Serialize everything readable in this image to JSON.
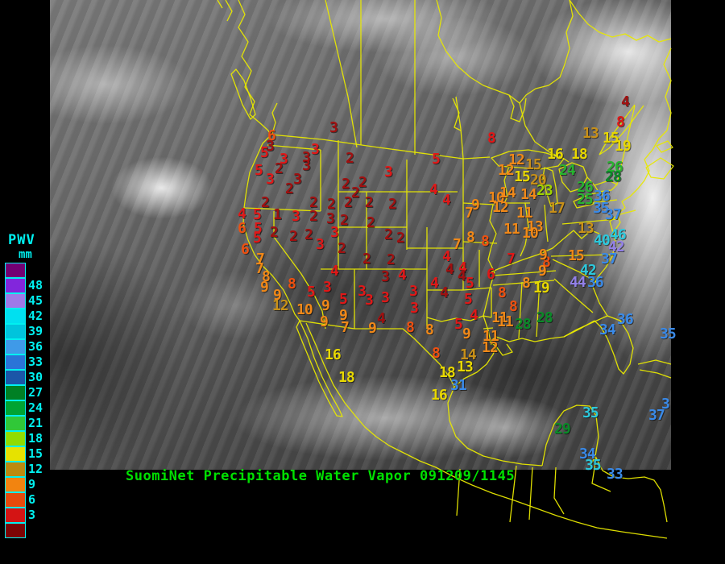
{
  "title": {
    "text": "SuomiNet Precipitable Water Vapor 091209/1145",
    "color": "#00e000"
  },
  "map": {
    "line_color": "#e8e800",
    "background": "#000000"
  },
  "legend": {
    "label": "PWV",
    "units": "mm",
    "text_color": "#00f0f0",
    "entries": [
      {
        "value": "",
        "color": "#730073"
      },
      {
        "value": "48",
        "color": "#8226dc"
      },
      {
        "value": "45",
        "color": "#9f79e8"
      },
      {
        "value": "42",
        "color": "#00e0f0"
      },
      {
        "value": "39",
        "color": "#00c4dc"
      },
      {
        "value": "36",
        "color": "#3f9ae8"
      },
      {
        "value": "33",
        "color": "#2a74d8"
      },
      {
        "value": "30",
        "color": "#1b56a8"
      },
      {
        "value": "27",
        "color": "#008024"
      },
      {
        "value": "24",
        "color": "#00a432"
      },
      {
        "value": "21",
        "color": "#30c838"
      },
      {
        "value": "18",
        "color": "#90dc00"
      },
      {
        "value": "15",
        "color": "#e6e200"
      },
      {
        "value": "12",
        "color": "#bc8a10"
      },
      {
        "value": "9",
        "color": "#f28410"
      },
      {
        "value": "6",
        "color": "#e64a0c"
      },
      {
        "value": "3",
        "color": "#d41414"
      },
      {
        "value": "",
        "color": "#7c0404"
      }
    ]
  },
  "palette": {
    "dr": "#a01010",
    "r": "#e01818",
    "or": "#ee5010",
    "o": "#f08818",
    "gd": "#c89018",
    "y": "#e8d800",
    "yg": "#a0d400",
    "gr": "#28b430",
    "dg": "#0a8a28",
    "bl": "#3a8ae8",
    "cy": "#2cc8dc",
    "pu": "#9280e8"
  },
  "stations": {
    "units": "mm PWV",
    "items": [
      [
        "3",
        409,
        151,
        "dr"
      ],
      [
        "6",
        332,
        161,
        "or"
      ],
      [
        "3",
        330,
        174,
        "dr"
      ],
      [
        "5",
        323,
        182,
        "r"
      ],
      [
        "3",
        386,
        178,
        "r"
      ],
      [
        "3",
        347,
        190,
        "r"
      ],
      [
        "3",
        375,
        188,
        "dr"
      ],
      [
        "3",
        375,
        198,
        "dr"
      ],
      [
        "2",
        429,
        189,
        "dr"
      ],
      [
        "5",
        536,
        190,
        "r"
      ],
      [
        "2",
        341,
        202,
        "dr"
      ],
      [
        "5",
        316,
        204,
        "r"
      ],
      [
        "3",
        477,
        206,
        "r"
      ],
      [
        "3",
        330,
        215,
        "r"
      ],
      [
        "3",
        364,
        215,
        "dr"
      ],
      [
        "2",
        354,
        227,
        "dr"
      ],
      [
        "2",
        424,
        221,
        "dr"
      ],
      [
        "2",
        445,
        219,
        "dr"
      ],
      [
        "2",
        436,
        232,
        "dr"
      ],
      [
        "4",
        533,
        228,
        "r"
      ],
      [
        "4",
        549,
        241,
        "r"
      ],
      [
        "2",
        324,
        244,
        "dr"
      ],
      [
        "2",
        384,
        244,
        "dr"
      ],
      [
        "2",
        406,
        246,
        "dr"
      ],
      [
        "2",
        427,
        244,
        "dr"
      ],
      [
        "2",
        453,
        244,
        "dr"
      ],
      [
        "2",
        482,
        246,
        "dr"
      ],
      [
        "9",
        585,
        247,
        "o"
      ],
      [
        "7",
        577,
        257,
        "o"
      ],
      [
        "4",
        295,
        258,
        "r"
      ],
      [
        "5",
        314,
        259,
        "r"
      ],
      [
        "1",
        339,
        259,
        "dr"
      ],
      [
        "3",
        362,
        261,
        "r"
      ],
      [
        "2",
        384,
        261,
        "dr"
      ],
      [
        "3",
        405,
        264,
        "dr"
      ],
      [
        "2",
        422,
        266,
        "dr"
      ],
      [
        "2",
        455,
        269,
        "dr"
      ],
      [
        "6",
        295,
        276,
        "or"
      ],
      [
        "5",
        315,
        276,
        "r"
      ],
      [
        "2",
        335,
        281,
        "dr"
      ],
      [
        "3",
        410,
        281,
        "r"
      ],
      [
        "2",
        477,
        284,
        "dr"
      ],
      [
        "2",
        492,
        288,
        "dr"
      ],
      [
        "5",
        314,
        288,
        "r"
      ],
      [
        "2",
        359,
        286,
        "dr"
      ],
      [
        "2",
        378,
        284,
        "dr"
      ],
      [
        "3",
        392,
        296,
        "r"
      ],
      [
        "2",
        419,
        301,
        "dr"
      ],
      [
        "8",
        579,
        287,
        "o"
      ],
      [
        "7",
        562,
        296,
        "o"
      ],
      [
        "2",
        450,
        314,
        "dr"
      ],
      [
        "2",
        480,
        315,
        "dr"
      ],
      [
        "6",
        299,
        302,
        "or"
      ],
      [
        "7",
        318,
        314,
        "o"
      ],
      [
        "7",
        317,
        326,
        "o"
      ],
      [
        "8",
        325,
        336,
        "o"
      ],
      [
        "9",
        323,
        349,
        "o"
      ],
      [
        "8",
        357,
        345,
        "or"
      ],
      [
        "9",
        339,
        359,
        "o"
      ],
      [
        "12",
        338,
        372,
        "gd"
      ],
      [
        "10",
        368,
        377,
        "o"
      ],
      [
        "5",
        381,
        355,
        "r"
      ],
      [
        "3",
        401,
        349,
        "r"
      ],
      [
        "5",
        421,
        364,
        "r"
      ],
      [
        "9",
        399,
        372,
        "o"
      ],
      [
        "9",
        421,
        384,
        "o"
      ],
      [
        "9",
        397,
        392,
        "o"
      ],
      [
        "7",
        423,
        399,
        "o"
      ],
      [
        "4",
        410,
        329,
        "r"
      ],
      [
        "3",
        473,
        336,
        "dr"
      ],
      [
        "4",
        494,
        334,
        "r"
      ],
      [
        "4",
        549,
        311,
        "r"
      ],
      [
        "4",
        569,
        325,
        "r"
      ],
      [
        "4",
        568,
        335,
        "dr"
      ],
      [
        "3",
        444,
        354,
        "r"
      ],
      [
        "3",
        453,
        365,
        "r"
      ],
      [
        "3",
        473,
        362,
        "r"
      ],
      [
        "3",
        508,
        354,
        "r"
      ],
      [
        "3",
        509,
        375,
        "r"
      ],
      [
        "4",
        468,
        388,
        "dr"
      ],
      [
        "9",
        457,
        400,
        "o"
      ],
      [
        "4",
        534,
        344,
        "r"
      ],
      [
        "4",
        546,
        356,
        "dr"
      ],
      [
        "4",
        553,
        327,
        "dr"
      ],
      [
        "5",
        578,
        344,
        "r"
      ],
      [
        "5",
        576,
        364,
        "r"
      ],
      [
        "4",
        583,
        384,
        "r"
      ],
      [
        "5",
        564,
        395,
        "r"
      ],
      [
        "9",
        574,
        407,
        "o"
      ],
      [
        "8",
        504,
        399,
        "or"
      ],
      [
        "8",
        528,
        402,
        "o"
      ],
      [
        "8",
        536,
        431,
        "or"
      ],
      [
        "14",
        571,
        433,
        "gd"
      ],
      [
        "18",
        545,
        455,
        "y"
      ],
      [
        "13",
        567,
        448,
        "y"
      ],
      [
        "31",
        559,
        471,
        "bl"
      ],
      [
        "16",
        535,
        483,
        "y"
      ],
      [
        "16",
        403,
        433,
        "y"
      ],
      [
        "18",
        420,
        461,
        "y"
      ],
      [
        "6",
        604,
        333,
        "r"
      ],
      [
        "7",
        629,
        314,
        "r"
      ],
      [
        "8",
        673,
        318,
        "or"
      ],
      [
        "9",
        669,
        309,
        "o"
      ],
      [
        "9",
        668,
        329,
        "o"
      ],
      [
        "8",
        648,
        344,
        "o"
      ],
      [
        "19",
        662,
        350,
        "y"
      ],
      [
        "8",
        618,
        356,
        "or"
      ],
      [
        "8",
        632,
        373,
        "or"
      ],
      [
        "11",
        610,
        387,
        "o"
      ],
      [
        "11",
        617,
        392,
        "o"
      ],
      [
        "11",
        599,
        410,
        "o"
      ],
      [
        "12",
        598,
        424,
        "o"
      ],
      [
        "28",
        639,
        395,
        "dg"
      ],
      [
        "28",
        666,
        387,
        "dg"
      ],
      [
        "8",
        605,
        164,
        "r"
      ],
      [
        "12",
        631,
        191,
        "o"
      ],
      [
        "12",
        618,
        204,
        "o"
      ],
      [
        "16",
        679,
        184,
        "y"
      ],
      [
        "15",
        652,
        197,
        "gd"
      ],
      [
        "15",
        638,
        212,
        "y"
      ],
      [
        "18",
        709,
        184,
        "y"
      ],
      [
        "13",
        723,
        158,
        "gd"
      ],
      [
        "15",
        748,
        164,
        "y"
      ],
      [
        "8",
        765,
        144,
        "r"
      ],
      [
        "4",
        771,
        119,
        "dr"
      ],
      [
        "19",
        763,
        174,
        "y"
      ],
      [
        "24",
        694,
        204,
        "gr"
      ],
      [
        "20",
        658,
        216,
        "gd"
      ],
      [
        "23",
        666,
        229,
        "yg"
      ],
      [
        "26",
        753,
        200,
        "gr"
      ],
      [
        "28",
        751,
        212,
        "dg"
      ],
      [
        "10",
        606,
        238,
        "o"
      ],
      [
        "14",
        620,
        232,
        "o"
      ],
      [
        "14",
        646,
        234,
        "o"
      ],
      [
        "12",
        611,
        250,
        "o"
      ],
      [
        "11",
        641,
        257,
        "o"
      ],
      [
        "17",
        681,
        251,
        "gd"
      ],
      [
        "13",
        654,
        274,
        "o"
      ],
      [
        "11",
        625,
        277,
        "o"
      ],
      [
        "10",
        648,
        282,
        "o"
      ],
      [
        "8",
        597,
        292,
        "or"
      ],
      [
        "26",
        716,
        225,
        "gr"
      ],
      [
        "25",
        716,
        240,
        "gr"
      ],
      [
        "36",
        737,
        236,
        "bl"
      ],
      [
        "35",
        736,
        251,
        "bl"
      ],
      [
        "37",
        751,
        259,
        "bl"
      ],
      [
        "13",
        717,
        276,
        "gd"
      ],
      [
        "40",
        737,
        291,
        "cy"
      ],
      [
        "46",
        757,
        284,
        "cy"
      ],
      [
        "42",
        755,
        299,
        "pu"
      ],
      [
        "15",
        705,
        310,
        "o"
      ],
      [
        "37",
        746,
        314,
        "bl"
      ],
      [
        "42",
        720,
        328,
        "cy"
      ],
      [
        "44",
        707,
        343,
        "pu"
      ],
      [
        "36",
        729,
        343,
        "bl"
      ],
      [
        "36",
        766,
        389,
        "bl"
      ],
      [
        "34",
        744,
        402,
        "bl"
      ],
      [
        "35",
        819,
        407,
        "bl"
      ],
      [
        "3",
        821,
        494,
        "bl"
      ],
      [
        "37",
        805,
        508,
        "bl"
      ],
      [
        "35",
        723,
        505,
        "cy"
      ],
      [
        "29",
        688,
        525,
        "dg"
      ],
      [
        "34",
        719,
        556,
        "bl"
      ],
      [
        "35",
        726,
        570,
        "cy"
      ],
      [
        "33",
        753,
        581,
        "bl"
      ]
    ]
  }
}
